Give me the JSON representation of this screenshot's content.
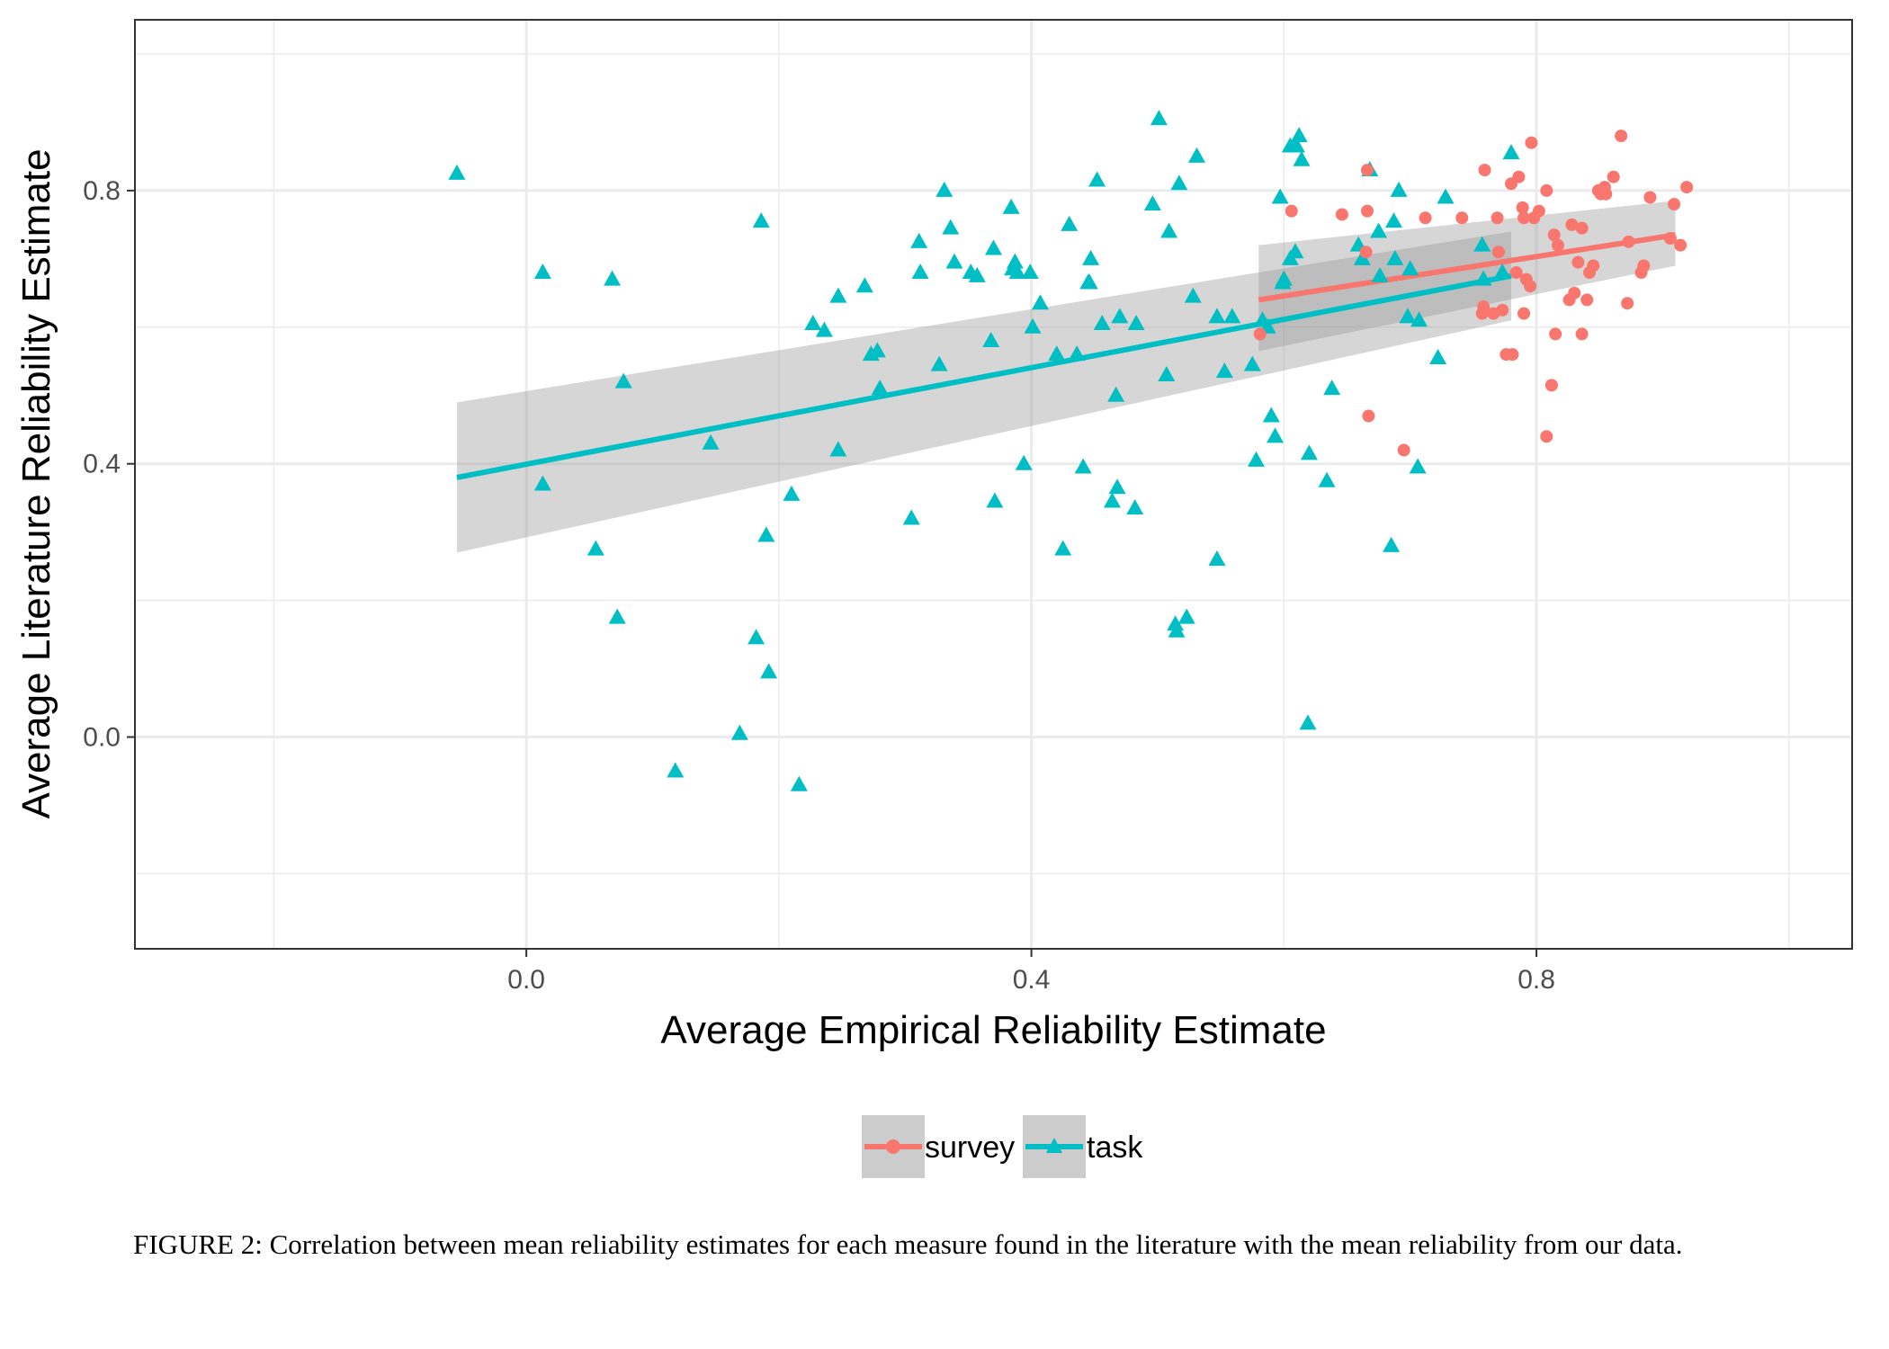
{
  "chart_data": {
    "type": "scatter",
    "xlabel": "Average Empirical Reliability Estimate",
    "ylabel": "Average Literature Reliability Estimate",
    "xlim": [
      -0.31,
      1.05
    ],
    "ylim": [
      -0.31,
      1.05
    ],
    "x_ticks": [
      "0.0",
      "0.4",
      "0.8"
    ],
    "y_ticks": [
      "0.0",
      "0.4",
      "0.8"
    ],
    "grid": true,
    "legend_position": "bottom",
    "series": [
      {
        "name": "survey",
        "color": "#F8766D",
        "marker": "circle",
        "trend": {
          "x": [
            0.58,
            0.91
          ],
          "y": [
            0.64,
            0.735
          ],
          "ci_low": [
            0.565,
            0.69
          ],
          "ci_high": [
            0.72,
            0.785
          ]
        },
        "points": [
          [
            0.581,
            0.59
          ],
          [
            0.606,
            0.77
          ],
          [
            0.646,
            0.765
          ],
          [
            0.666,
            0.83
          ],
          [
            0.666,
            0.77
          ],
          [
            0.665,
            0.71
          ],
          [
            0.667,
            0.47
          ],
          [
            0.695,
            0.42
          ],
          [
            0.712,
            0.76
          ],
          [
            0.741,
            0.76
          ],
          [
            0.759,
            0.83
          ],
          [
            0.769,
            0.76
          ],
          [
            0.77,
            0.71
          ],
          [
            0.766,
            0.62
          ],
          [
            0.773,
            0.625
          ],
          [
            0.78,
            0.81
          ],
          [
            0.786,
            0.82
          ],
          [
            0.776,
            0.56
          ],
          [
            0.781,
            0.56
          ],
          [
            0.784,
            0.68
          ],
          [
            0.789,
            0.775
          ],
          [
            0.79,
            0.76
          ],
          [
            0.79,
            0.62
          ],
          [
            0.796,
            0.87
          ],
          [
            0.792,
            0.67
          ],
          [
            0.795,
            0.66
          ],
          [
            0.798,
            0.76
          ],
          [
            0.802,
            0.77
          ],
          [
            0.808,
            0.8
          ],
          [
            0.808,
            0.44
          ],
          [
            0.812,
            0.515
          ],
          [
            0.814,
            0.735
          ],
          [
            0.815,
            0.59
          ],
          [
            0.817,
            0.72
          ],
          [
            0.826,
            0.64
          ],
          [
            0.828,
            0.75
          ],
          [
            0.83,
            0.65
          ],
          [
            0.833,
            0.695
          ],
          [
            0.836,
            0.745
          ],
          [
            0.836,
            0.59
          ],
          [
            0.84,
            0.64
          ],
          [
            0.842,
            0.68
          ],
          [
            0.845,
            0.69
          ],
          [
            0.849,
            0.8
          ],
          [
            0.851,
            0.795
          ],
          [
            0.854,
            0.805
          ],
          [
            0.855,
            0.795
          ],
          [
            0.861,
            0.82
          ],
          [
            0.867,
            0.88
          ],
          [
            0.872,
            0.635
          ],
          [
            0.873,
            0.725
          ],
          [
            0.883,
            0.68
          ],
          [
            0.885,
            0.69
          ],
          [
            0.89,
            0.79
          ],
          [
            0.906,
            0.73
          ],
          [
            0.909,
            0.78
          ],
          [
            0.914,
            0.72
          ],
          [
            0.919,
            0.805
          ],
          [
            0.758,
            0.63
          ],
          [
            0.757,
            0.62
          ]
        ]
      },
      {
        "name": "task",
        "color": "#00BFC4",
        "marker": "triangle",
        "trend": {
          "x": [
            -0.055,
            0.78
          ],
          "y": [
            0.38,
            0.675
          ],
          "ci_low": [
            0.27,
            0.61
          ],
          "ci_high": [
            0.49,
            0.74
          ]
        },
        "points": [
          [
            -0.055,
            0.825
          ],
          [
            0.013,
            0.68
          ],
          [
            0.013,
            0.37
          ],
          [
            0.055,
            0.275
          ],
          [
            0.068,
            0.67
          ],
          [
            0.072,
            0.175
          ],
          [
            0.077,
            0.52
          ],
          [
            0.118,
            -0.05
          ],
          [
            0.146,
            0.43
          ],
          [
            0.169,
            0.005
          ],
          [
            0.182,
            0.145
          ],
          [
            0.186,
            0.755
          ],
          [
            0.19,
            0.295
          ],
          [
            0.192,
            0.095
          ],
          [
            0.21,
            0.355
          ],
          [
            0.216,
            -0.07
          ],
          [
            0.227,
            0.605
          ],
          [
            0.236,
            0.595
          ],
          [
            0.247,
            0.645
          ],
          [
            0.247,
            0.42
          ],
          [
            0.268,
            0.66
          ],
          [
            0.273,
            0.56
          ],
          [
            0.278,
            0.565
          ],
          [
            0.28,
            0.51
          ],
          [
            0.305,
            0.32
          ],
          [
            0.311,
            0.725
          ],
          [
            0.312,
            0.68
          ],
          [
            0.327,
            0.545
          ],
          [
            0.331,
            0.8
          ],
          [
            0.336,
            0.745
          ],
          [
            0.339,
            0.695
          ],
          [
            0.352,
            0.68
          ],
          [
            0.357,
            0.675
          ],
          [
            0.368,
            0.58
          ],
          [
            0.37,
            0.715
          ],
          [
            0.371,
            0.345
          ],
          [
            0.384,
            0.775
          ],
          [
            0.385,
            0.685
          ],
          [
            0.387,
            0.695
          ],
          [
            0.389,
            0.68
          ],
          [
            0.394,
            0.4
          ],
          [
            0.399,
            0.68
          ],
          [
            0.401,
            0.6
          ],
          [
            0.407,
            0.635
          ],
          [
            0.42,
            0.56
          ],
          [
            0.425,
            0.275
          ],
          [
            0.43,
            0.75
          ],
          [
            0.436,
            0.56
          ],
          [
            0.441,
            0.395
          ],
          [
            0.445,
            0.665
          ],
          [
            0.447,
            0.7
          ],
          [
            0.446,
            0.665
          ],
          [
            0.452,
            0.815
          ],
          [
            0.456,
            0.605
          ],
          [
            0.464,
            0.345
          ],
          [
            0.467,
            0.5
          ],
          [
            0.468,
            0.365
          ],
          [
            0.47,
            0.615
          ],
          [
            0.482,
            0.335
          ],
          [
            0.483,
            0.605
          ],
          [
            0.496,
            0.78
          ],
          [
            0.501,
            0.905
          ],
          [
            0.507,
            0.53
          ],
          [
            0.509,
            0.74
          ],
          [
            0.514,
            0.165
          ],
          [
            0.515,
            0.155
          ],
          [
            0.517,
            0.81
          ],
          [
            0.523,
            0.175
          ],
          [
            0.528,
            0.645
          ],
          [
            0.531,
            0.85
          ],
          [
            0.547,
            0.615
          ],
          [
            0.547,
            0.26
          ],
          [
            0.553,
            0.535
          ],
          [
            0.559,
            0.615
          ],
          [
            0.575,
            0.545
          ],
          [
            0.578,
            0.405
          ],
          [
            0.583,
            0.61
          ],
          [
            0.587,
            0.6
          ],
          [
            0.59,
            0.47
          ],
          [
            0.593,
            0.44
          ],
          [
            0.597,
            0.79
          ],
          [
            0.599,
            0.665
          ],
          [
            0.6,
            0.67
          ],
          [
            0.605,
            0.865
          ],
          [
            0.605,
            0.7
          ],
          [
            0.609,
            0.71
          ],
          [
            0.61,
            0.865
          ],
          [
            0.612,
            0.88
          ],
          [
            0.614,
            0.845
          ],
          [
            0.619,
            0.02
          ],
          [
            0.62,
            0.415
          ],
          [
            0.634,
            0.375
          ],
          [
            0.638,
            0.51
          ],
          [
            0.659,
            0.72
          ],
          [
            0.662,
            0.7
          ],
          [
            0.668,
            0.83
          ],
          [
            0.675,
            0.74
          ],
          [
            0.676,
            0.675
          ],
          [
            0.685,
            0.28
          ],
          [
            0.687,
            0.755
          ],
          [
            0.688,
            0.7
          ],
          [
            0.691,
            0.8
          ],
          [
            0.698,
            0.615
          ],
          [
            0.7,
            0.685
          ],
          [
            0.706,
            0.395
          ],
          [
            0.707,
            0.61
          ],
          [
            0.722,
            0.555
          ],
          [
            0.728,
            0.79
          ],
          [
            0.757,
            0.72
          ],
          [
            0.758,
            0.67
          ],
          [
            0.773,
            0.68
          ],
          [
            0.78,
            0.855
          ]
        ]
      }
    ]
  },
  "legend": {
    "items": [
      {
        "label": "survey",
        "color": "#F8766D"
      },
      {
        "label": "task",
        "color": "#00BFC4"
      }
    ]
  },
  "caption": "FIGURE 2: Correlation between mean reliability estimates for each measure found in the literature with the mean reliability from our data."
}
